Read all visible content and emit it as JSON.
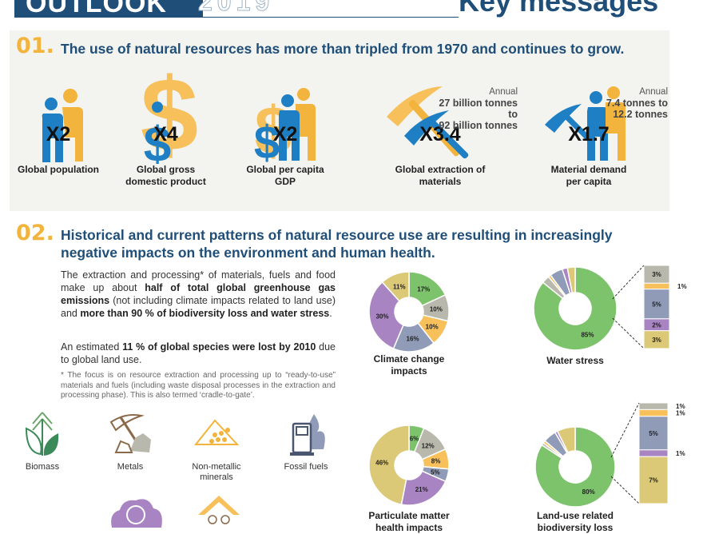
{
  "header": {
    "left": "OUTLOOK",
    "year": "2019",
    "right": "Key messages"
  },
  "section1": {
    "number": "01.",
    "headline": "The use of natural resources has more than tripled from 1970 and continues to grow.",
    "stats": [
      {
        "multiplier": "X2",
        "label_lines": [
          "Global population"
        ],
        "icon": "person-icon"
      },
      {
        "multiplier": "X4",
        "label_lines": [
          "Global gross",
          "domestic product"
        ],
        "icon": "dollar-icon"
      },
      {
        "multiplier": "X2",
        "label_lines": [
          "Global per capita",
          "GDP"
        ],
        "icon": "dollar-person-icon"
      },
      {
        "multiplier": "X3.4",
        "label_lines": [
          "Global extraction of",
          "materials"
        ],
        "icon": "pickaxe-icon",
        "annual": [
          "Annual",
          "27 billion tonnes to",
          "92 billion tonnes"
        ]
      },
      {
        "multiplier": "X1.7",
        "label_lines": [
          "Material demand",
          "per capita"
        ],
        "icon": "person-pickaxe-icon",
        "annual": [
          "Annual",
          "7.4 tonnes to",
          "12.2 tonnes"
        ]
      }
    ]
  },
  "section2": {
    "number": "02.",
    "headline_lines": [
      "Historical and current patterns of natural resource use are resulting in increasingly",
      "negative impacts on the environment and human health."
    ],
    "para1_parts": [
      {
        "t": "The extraction and processing* of materials, fuels and food make up about ",
        "b": false
      },
      {
        "t": "half of total global greenhouse gas emissions",
        "b": true
      },
      {
        "t": " (not including climate impacts related to land use) and ",
        "b": false
      },
      {
        "t": "more than 90 % of biodiversity loss and water stress",
        "b": true
      },
      {
        "t": ".",
        "b": false
      }
    ],
    "para2_parts": [
      {
        "t": "An estimated ",
        "b": false
      },
      {
        "t": "11 % of global species were lost by 2010",
        "b": true
      },
      {
        "t": " due to global land use.",
        "b": false
      }
    ],
    "footnote": "* The focus is on resource extraction and processing up to “ready-to-use” materials and fuels (including waste disposal processes in the extraction and processing phase). This is also termed ‘cradle-to-gate’.",
    "resources": [
      {
        "label_lines": [
          "Biomass"
        ],
        "icon": "leaf-icon"
      },
      {
        "label_lines": [
          "Metals"
        ],
        "icon": "pickaxe-rock-icon"
      },
      {
        "label_lines": [
          "Non-metallic",
          "minerals"
        ],
        "icon": "minerals-icon"
      },
      {
        "label_lines": [
          "Fossil fuels"
        ],
        "icon": "fuel-pump-icon"
      }
    ]
  },
  "colors": {
    "navy": "#1f4e79",
    "orange": "#f2b43c",
    "green": "#7cc36b",
    "grey": "#b9b8ad",
    "yellow": "#f7c05a",
    "slate": "#8f9bb7",
    "purple": "#a984c2",
    "tan": "#dcc977"
  },
  "chart_data": [
    {
      "type": "pie",
      "title_lines": [
        "Climate change",
        "impacts"
      ],
      "slices": [
        {
          "label": "17%",
          "value": 17,
          "color": "#7cc36b"
        },
        {
          "label": "10%",
          "value": 10,
          "color": "#b9b8ad"
        },
        {
          "label": "10%",
          "value": 10,
          "color": "#f7c05a"
        },
        {
          "label": "16%",
          "value": 16,
          "color": "#8f9bb7"
        },
        {
          "label": "30%",
          "value": 30,
          "color": "#a984c2"
        },
        {
          "label": "11%",
          "value": 11,
          "color": "#dcc977"
        }
      ]
    },
    {
      "type": "pie",
      "title_lines": [
        "Water stress"
      ],
      "slices": [
        {
          "label": "85%",
          "value": 85,
          "color": "#7cc36b"
        },
        {
          "label": "3%",
          "value": 3,
          "color": "#b9b8ad"
        },
        {
          "label": "1%",
          "value": 1,
          "color": "#f7c05a"
        },
        {
          "label": "5%",
          "value": 5,
          "color": "#8f9bb7"
        },
        {
          "label": "2%",
          "value": 2,
          "color": "#a984c2"
        },
        {
          "label": "3%",
          "value": 3,
          "color": "#dcc977"
        }
      ]
    },
    {
      "type": "pie",
      "title_lines": [
        "Particulate matter",
        "health impacts"
      ],
      "slices": [
        {
          "label": "6%",
          "value": 6,
          "color": "#7cc36b"
        },
        {
          "label": "12%",
          "value": 12,
          "color": "#b9b8ad"
        },
        {
          "label": "8%",
          "value": 8,
          "color": "#f7c05a"
        },
        {
          "label": "5%",
          "value": 5,
          "color": "#8f9bb7"
        },
        {
          "label": "21%",
          "value": 21,
          "color": "#a984c2"
        },
        {
          "label": "46%",
          "value": 46,
          "color": "#dcc977"
        }
      ]
    },
    {
      "type": "pie",
      "title_lines": [
        "Land-use related",
        "biodiversity loss"
      ],
      "slices": [
        {
          "label": "80%",
          "value": 80,
          "color": "#7cc36b"
        },
        {
          "label": "1%",
          "value": 1,
          "color": "#b9b8ad"
        },
        {
          "label": "1%",
          "value": 1,
          "color": "#f7c05a"
        },
        {
          "label": "5%",
          "value": 5,
          "color": "#8f9bb7"
        },
        {
          "label": "1%",
          "value": 1,
          "color": "#a984c2"
        },
        {
          "label": "7%",
          "value": 7,
          "color": "#dcc977"
        }
      ]
    }
  ]
}
